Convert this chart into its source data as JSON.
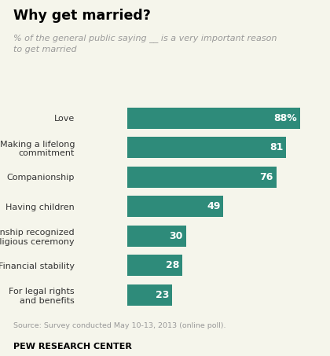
{
  "title": "Why get married?",
  "subtitle": "% of the general public saying __ is a very important reason\nto get married",
  "categories": [
    "Love",
    "Making a lifelong\ncommitment",
    "Companionship",
    "Having children",
    "A relationship recognized\nin a religious ceremony",
    "Financial stability",
    "For legal rights\nand benefits"
  ],
  "values": [
    88,
    81,
    76,
    49,
    30,
    28,
    23
  ],
  "labels": [
    "88%",
    "81",
    "76",
    "49",
    "30",
    "28",
    "23"
  ],
  "bar_color": "#2e8b7a",
  "background_color": "#f5f5eb",
  "title_color": "#000000",
  "subtitle_color": "#999999",
  "label_color": "#ffffff",
  "source_text": "Source: Survey conducted May 10-13, 2013 (online poll).",
  "footer_text": "PEW RESEARCH CENTER",
  "xlim": [
    0,
    100
  ]
}
